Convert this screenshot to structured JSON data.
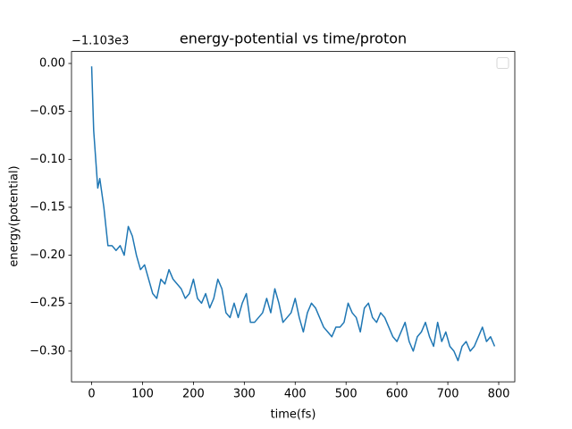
{
  "chart_data": {
    "type": "line",
    "title": "energy-potential vs time/proton",
    "xlabel": "time(fs)",
    "ylabel": "energy(potential)",
    "y_offset_label": "−1.103e3",
    "color": "#1f77b4",
    "legend": "upper right",
    "xlim": [
      -39.6,
      831.6
    ],
    "ylim": [
      -0.332,
      0.0125
    ],
    "xticks": [
      0,
      100,
      200,
      300,
      400,
      500,
      600,
      700,
      800
    ],
    "yticks": [
      {
        "value": 0,
        "label": "0.00"
      },
      {
        "value": -0.05,
        "label": "−0.05"
      },
      {
        "value": -0.1,
        "label": "−0.10"
      },
      {
        "value": -0.15,
        "label": "−0.15"
      },
      {
        "value": -0.2,
        "label": "−0.20"
      },
      {
        "value": -0.25,
        "label": "−0.25"
      },
      {
        "value": -0.3,
        "label": "−0.30"
      }
    ],
    "x": [
      0,
      4,
      8,
      12,
      16,
      24,
      32,
      40,
      48,
      56,
      64,
      72,
      80,
      88,
      96,
      104,
      112,
      120,
      128,
      136,
      144,
      152,
      160,
      168,
      176,
      184,
      192,
      200,
      208,
      216,
      224,
      232,
      240,
      248,
      256,
      264,
      272,
      280,
      288,
      296,
      304,
      312,
      320,
      328,
      336,
      344,
      352,
      360,
      368,
      376,
      384,
      392,
      400,
      408,
      416,
      424,
      432,
      440,
      448,
      456,
      464,
      472,
      480,
      488,
      496,
      504,
      512,
      520,
      528,
      536,
      544,
      552,
      560,
      568,
      576,
      584,
      592,
      600,
      608,
      616,
      624,
      632,
      640,
      648,
      656,
      664,
      672,
      680,
      688,
      696,
      704,
      712,
      720,
      728,
      736,
      744,
      752,
      760,
      768,
      776,
      784,
      792
    ],
    "values": [
      -0.003,
      -0.07,
      -0.1,
      -0.13,
      -0.12,
      -0.15,
      -0.19,
      -0.19,
      -0.195,
      -0.19,
      -0.2,
      -0.17,
      -0.18,
      -0.2,
      -0.215,
      -0.21,
      -0.225,
      -0.24,
      -0.245,
      -0.225,
      -0.23,
      -0.215,
      -0.225,
      -0.23,
      -0.235,
      -0.245,
      -0.24,
      -0.225,
      -0.245,
      -0.25,
      -0.24,
      -0.255,
      -0.245,
      -0.225,
      -0.235,
      -0.26,
      -0.265,
      -0.25,
      -0.265,
      -0.25,
      -0.24,
      -0.27,
      -0.27,
      -0.265,
      -0.26,
      -0.245,
      -0.26,
      -0.235,
      -0.25,
      -0.27,
      -0.265,
      -0.26,
      -0.245,
      -0.265,
      -0.28,
      -0.26,
      -0.25,
      -0.255,
      -0.265,
      -0.275,
      -0.28,
      -0.285,
      -0.275,
      -0.275,
      -0.27,
      -0.25,
      -0.26,
      -0.265,
      -0.28,
      -0.255,
      -0.25,
      -0.265,
      -0.27,
      -0.26,
      -0.265,
      -0.275,
      -0.285,
      -0.29,
      -0.28,
      -0.27,
      -0.29,
      -0.3,
      -0.285,
      -0.28,
      -0.27,
      -0.285,
      -0.295,
      -0.27,
      -0.29,
      -0.28,
      -0.295,
      -0.3,
      -0.31,
      -0.295,
      -0.29,
      -0.3,
      -0.295,
      -0.285,
      -0.275,
      -0.29,
      -0.285,
      -0.295
    ]
  }
}
